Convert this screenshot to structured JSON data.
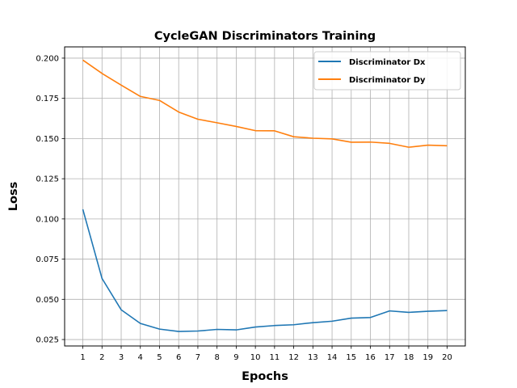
{
  "chart_data": {
    "type": "line",
    "title": "CycleGAN Discriminators Training",
    "xlabel": "Epochs",
    "ylabel": "Loss",
    "x": [
      1,
      2,
      3,
      4,
      5,
      6,
      7,
      8,
      9,
      10,
      11,
      12,
      13,
      14,
      15,
      16,
      17,
      18,
      19,
      20
    ],
    "x_ticks": [
      "1",
      "2",
      "3",
      "4",
      "5",
      "6",
      "7",
      "8",
      "9",
      "10",
      "11",
      "12",
      "13",
      "14",
      "15",
      "16",
      "17",
      "18",
      "19",
      "20"
    ],
    "y_ticks": [
      "0.025",
      "0.050",
      "0.075",
      "0.100",
      "0.125",
      "0.150",
      "0.175",
      "0.200"
    ],
    "ylim": [
      0.021,
      0.207
    ],
    "xlim": [
      0.05,
      20.95
    ],
    "grid": true,
    "legend_position": "top-right",
    "series": [
      {
        "name": "Discriminator Dx",
        "color": "#1f77b4",
        "values": [
          0.106,
          0.063,
          0.0435,
          0.035,
          0.0315,
          0.03,
          0.0303,
          0.0313,
          0.031,
          0.0328,
          0.0337,
          0.0342,
          0.0355,
          0.0364,
          0.0383,
          0.0387,
          0.0428,
          0.0419,
          0.0426,
          0.043
        ]
      },
      {
        "name": "Discriminator Dy",
        "color": "#ff7f0e",
        "values": [
          0.1988,
          0.1905,
          0.1832,
          0.1762,
          0.1737,
          0.1665,
          0.162,
          0.1598,
          0.1575,
          0.1549,
          0.1548,
          0.1511,
          0.1502,
          0.1498,
          0.1477,
          0.1478,
          0.147,
          0.1446,
          0.1459,
          0.1455
        ]
      }
    ]
  }
}
